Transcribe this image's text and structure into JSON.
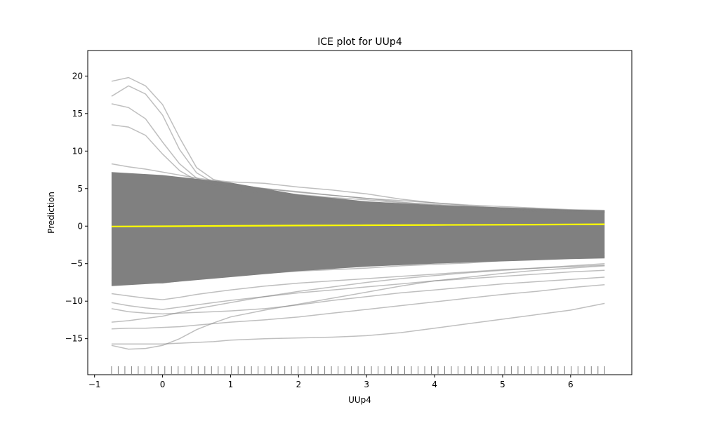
{
  "chart_data": {
    "type": "line",
    "title": "ICE plot for UUp4",
    "xlabel": "UUp4",
    "ylabel": "Prediction",
    "xlim": [
      -1.1,
      6.9
    ],
    "ylim": [
      -19.8,
      23.4
    ],
    "xticks": [
      -1,
      0,
      1,
      2,
      3,
      4,
      5,
      6
    ],
    "yticks": [
      -15,
      -10,
      -5,
      0,
      5,
      10,
      15,
      20
    ],
    "xtick_labels": [
      "−1",
      "0",
      "1",
      "2",
      "3",
      "4",
      "5",
      "6"
    ],
    "ytick_labels": [
      "−15",
      "−10",
      "−5",
      "0",
      "5",
      "10",
      "15",
      "20"
    ],
    "grid": false,
    "legend": "none",
    "colors": {
      "ice_lines": "#808080",
      "average_line": "#ffff00",
      "rug": "#808080"
    },
    "x": [
      -0.75,
      -0.5,
      -0.25,
      0,
      0.25,
      0.5,
      0.75,
      1,
      1.5,
      2,
      2.5,
      3,
      3.5,
      4,
      4.5,
      5,
      5.5,
      6,
      6.5
    ],
    "series_representative": [
      {
        "name": "",
        "values": [
          19.3,
          19.8,
          18.7,
          16.2,
          11.8,
          7.8,
          6.2,
          5.6,
          5.0,
          4.5,
          4.1,
          3.7,
          3.4,
          3.1,
          2.8,
          2.6,
          2.4,
          2.2,
          2.1
        ]
      },
      {
        "name": "",
        "values": [
          17.3,
          18.7,
          17.6,
          14.8,
          10.2,
          7.1,
          5.8,
          5.2,
          4.6,
          4.2,
          3.8,
          3.5,
          3.1,
          2.9,
          2.6,
          2.4,
          2.2,
          2.1,
          2.0
        ]
      },
      {
        "name": "",
        "values": [
          16.3,
          15.8,
          14.3,
          11.2,
          8.3,
          6.4,
          5.5,
          5.0,
          4.4,
          3.9,
          3.5,
          3.2,
          2.9,
          2.7,
          2.5,
          2.3,
          2.1,
          2.0,
          1.9
        ]
      },
      {
        "name": "",
        "values": [
          13.5,
          13.2,
          12.1,
          9.6,
          7.4,
          6.1,
          5.4,
          4.9,
          4.3,
          3.8,
          3.4,
          3.1,
          2.8,
          2.6,
          2.4,
          2.2,
          2.0,
          1.9,
          1.8
        ]
      },
      {
        "name": "",
        "values": [
          8.3,
          7.9,
          7.6,
          7.2,
          6.8,
          6.4,
          6.1,
          5.9,
          5.7,
          5.2,
          4.8,
          4.3,
          3.6,
          3.1,
          2.7,
          2.4,
          2.2,
          2.0,
          2.0
        ]
      },
      {
        "name": "",
        "values": [
          7.1,
          6.9,
          6.7,
          6.4,
          6.1,
          5.8,
          5.6,
          5.4,
          5.0,
          4.6,
          4.1,
          3.7,
          3.2,
          2.8,
          2.5,
          2.2,
          2.0,
          1.9,
          1.8
        ]
      },
      {
        "name": "",
        "values": [
          -5.6,
          -5.7,
          -5.8,
          -5.9,
          -5.7,
          -5.5,
          -5.3,
          -5.1,
          -4.9,
          -4.8,
          -4.7,
          -4.6,
          -4.5,
          -4.4,
          -4.3,
          -4.2,
          -4.0,
          -3.8,
          -3.6
        ]
      },
      {
        "name": "",
        "values": [
          -7.2,
          -7.4,
          -7.5,
          -7.6,
          -7.3,
          -7.0,
          -6.8,
          -6.6,
          -6.3,
          -6.0,
          -5.8,
          -5.6,
          -5.3,
          -5.1,
          -4.9,
          -4.6,
          -4.4,
          -4.2,
          -4.0
        ]
      },
      {
        "name": "",
        "values": [
          -9.0,
          -9.3,
          -9.6,
          -9.8,
          -9.5,
          -9.1,
          -8.8,
          -8.5,
          -8.0,
          -7.6,
          -7.3,
          -7.0,
          -6.7,
          -6.4,
          -6.1,
          -5.8,
          -5.6,
          -5.4,
          -5.2
        ]
      },
      {
        "name": "",
        "values": [
          -10.2,
          -10.6,
          -10.9,
          -11.1,
          -10.8,
          -10.5,
          -10.2,
          -9.9,
          -9.4,
          -8.9,
          -8.5,
          -8.1,
          -7.7,
          -7.3,
          -7.0,
          -6.7,
          -6.4,
          -6.1,
          -5.9
        ]
      },
      {
        "name": "",
        "values": [
          -11.0,
          -11.4,
          -11.6,
          -11.7,
          -11.6,
          -11.5,
          -11.4,
          -11.3,
          -11.0,
          -10.5,
          -9.9,
          -9.4,
          -8.9,
          -8.5,
          -8.1,
          -7.7,
          -7.4,
          -7.1,
          -6.8
        ]
      },
      {
        "name": "",
        "values": [
          -13.7,
          -13.6,
          -13.6,
          -13.5,
          -13.4,
          -13.2,
          -13.0,
          -12.8,
          -12.5,
          -12.1,
          -11.6,
          -11.1,
          -10.6,
          -10.1,
          -9.6,
          -9.1,
          -8.7,
          -8.2,
          -7.8
        ]
      },
      {
        "name": "",
        "values": [
          -15.7,
          -15.7,
          -15.7,
          -15.7,
          -15.6,
          -15.5,
          -15.4,
          -15.2,
          -15.0,
          -14.9,
          -14.8,
          -14.6,
          -14.2,
          -13.6,
          -13.0,
          -12.4,
          -11.8,
          -11.2,
          -10.3
        ]
      },
      {
        "name": "",
        "values": [
          -15.9,
          -16.4,
          -16.3,
          -15.9,
          -15.0,
          -13.8,
          -12.9,
          -12.1,
          -11.2,
          -10.4,
          -9.6,
          -8.8,
          -8.0,
          -7.3,
          -6.8,
          -6.3,
          -5.9,
          -5.6,
          -5.3
        ]
      },
      {
        "name": "",
        "values": [
          -12.8,
          -12.6,
          -12.3,
          -12.0,
          -11.5,
          -11.0,
          -10.6,
          -10.2,
          -9.4,
          -8.7,
          -8.1,
          -7.5,
          -7.0,
          -6.6,
          -6.2,
          -5.9,
          -5.6,
          -5.3,
          -5.0
        ]
      }
    ],
    "band": {
      "x": [
        -0.75,
        0,
        1,
        2,
        3,
        4,
        5,
        6,
        6.5
      ],
      "upper": [
        7.2,
        6.8,
        5.8,
        4.2,
        3.3,
        2.8,
        2.5,
        2.2,
        2.1
      ],
      "lower": [
        -8.0,
        -7.6,
        -6.8,
        -6.0,
        -5.4,
        -5.0,
        -4.7,
        -4.4,
        -4.3
      ]
    },
    "average_line": {
      "x": [
        -0.75,
        0,
        1,
        2,
        3,
        4,
        5,
        6,
        6.5
      ],
      "values": [
        -0.05,
        -0.02,
        0.03,
        0.08,
        0.12,
        0.15,
        0.18,
        0.22,
        0.25
      ]
    },
    "rug": {
      "range": [
        -0.75,
        6.5
      ],
      "count": 75
    }
  }
}
